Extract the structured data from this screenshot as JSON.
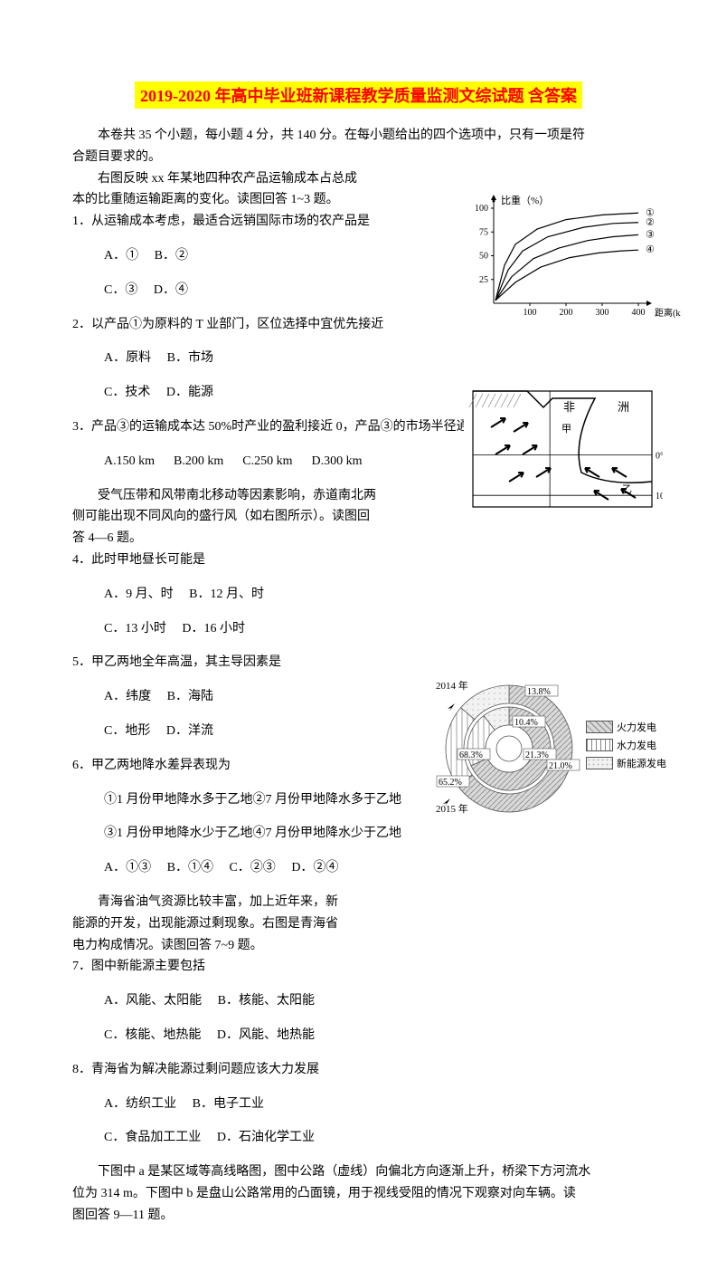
{
  "title": "2019-2020 年高中毕业班新课程教学质量监测文综试题 含答案",
  "intro": {
    "p1": "本卷共 35 个小题，每小题 4 分，共 140 分。在每小题给出的四个选项中，只有一项是符",
    "p2": "合题目要求的。",
    "p3": "右图反映 xx 年某地四种农产品运输成本占总成",
    "p4": "本的比重随运输距离的变化。读图回答 1~3 题。"
  },
  "q1": {
    "stem": "1．从运输成本考虑，最适合远销国际市场的农产品是",
    "a": "A．①",
    "b": "B．②",
    "c": "C．③",
    "d": "D．④"
  },
  "q2": {
    "stem": "2．以产品①为原料的 T 业部门，区位选择中宜优先接近",
    "a": "A．原料",
    "b": "B．市场",
    "c": "C．技术",
    "d": "D．能源"
  },
  "q3": {
    "stem": "3．产品③的运输成本达 50%时产业的盈利接近 0，产品③的市场半径通常不超过",
    "a": "A.150 km",
    "b": "B.200 km",
    "c": "C.250 km",
    "d": "D.300 km"
  },
  "context2": {
    "l1": "受气压带和风带南北移动等因素影响，赤道南北两",
    "l2": "侧可能出现不同风向的盛行风（如右图所示）。读图回",
    "l3": "答 4—6 题。"
  },
  "q4": {
    "stem": "4．此时甲地昼长可能是",
    "a": "A．9 月、时",
    "b": "B．12 月、时",
    "c": "C．13 小时",
    "d": "D．16 小时"
  },
  "q5": {
    "stem": "5．甲乙两地全年高温，其主导因素是",
    "a": "A．纬度",
    "b": "B．海陆",
    "c": "C．地形",
    "d": "D．洋流"
  },
  "q6": {
    "stem": "6．甲乙两地降水差异表现为",
    "l1": "①1 月份甲地降水多于乙地②7 月份甲地降水多于乙地",
    "l2": "③1 月份甲地降水少于乙地④7 月份甲地降水少于乙地",
    "a": "A．①③",
    "b": "B．①④",
    "c": "C．②③",
    "d": "D．②④"
  },
  "context3": {
    "l1": "青海省油气资源比较丰富，加上近年来，新",
    "l2": "能源的开发，出现能源过剩现象。右图是青海省",
    "l3": "电力构成情况。读图回答 7~9 题。"
  },
  "q7": {
    "stem": "7．图中新能源主要包括",
    "a": "A．风能、太阳能",
    "b": "B．核能、太阳能",
    "c": "C．核能、地热能",
    "d": "D．风能、地热能"
  },
  "q8": {
    "stem": "8．青海省为解决能源过剩问题应该大力发展",
    "a": "A．纺织工业",
    "b": "B．电子工业",
    "c": "C．食品加工工业",
    "d": "D．石油化学工业"
  },
  "context4": {
    "l1": "下图中 a 是某区域等高线略图，图中公路（虚线）向偏北方向逐渐上升，桥梁下方河流水",
    "l2": "位为 314 m。下图中 b 是盘山公路常用的凸面镜，用于视线受阻的情况下观察对向车辆。读",
    "l3": "图回答 9—11 题。"
  },
  "chart1": {
    "type": "line",
    "title_y": "比重（%）",
    "title_x": "距离(km)",
    "series_labels": [
      "①",
      "②",
      "③",
      "④"
    ],
    "ylim": [
      0,
      100
    ],
    "ytick": [
      25,
      50,
      75,
      100
    ],
    "xlim": [
      0,
      400
    ],
    "xtick": [
      100,
      200,
      300,
      400
    ],
    "colors": {
      "axes": "#000000",
      "lines": "#000000",
      "bg": "#ffffff"
    },
    "line_width": 1.2,
    "series": {
      "s1": [
        [
          5,
          3
        ],
        [
          30,
          40
        ],
        [
          60,
          62
        ],
        [
          120,
          78
        ],
        [
          200,
          88
        ],
        [
          300,
          93
        ],
        [
          400,
          95
        ]
      ],
      "s2": [
        [
          5,
          3
        ],
        [
          40,
          35
        ],
        [
          80,
          55
        ],
        [
          150,
          70
        ],
        [
          250,
          80
        ],
        [
          330,
          84
        ],
        [
          400,
          85
        ]
      ],
      "s3": [
        [
          5,
          3
        ],
        [
          50,
          28
        ],
        [
          110,
          47
        ],
        [
          180,
          58
        ],
        [
          260,
          66
        ],
        [
          330,
          70
        ],
        [
          400,
          72
        ]
      ],
      "s4": [
        [
          5,
          3
        ],
        [
          60,
          22
        ],
        [
          130,
          38
        ],
        [
          210,
          48
        ],
        [
          290,
          53
        ],
        [
          350,
          55
        ],
        [
          400,
          56
        ]
      ]
    }
  },
  "chart2": {
    "type": "map-sketch",
    "labels": {
      "continent1": "非",
      "continent2": "洲",
      "jia": "甲",
      "yi": "乙"
    },
    "lat_labels": [
      "0°",
      "10°"
    ],
    "colors": {
      "border": "#000000",
      "land_hatch": "#777777",
      "bg": "#ffffff",
      "arrow": "#000000"
    },
    "arrows_nw": [
      [
        20,
        40
      ],
      [
        45,
        45
      ],
      [
        25,
        70
      ],
      [
        55,
        70
      ],
      [
        40,
        100
      ],
      [
        70,
        95
      ]
    ],
    "arrows_se": [
      [
        140,
        95
      ],
      [
        170,
        95
      ],
      [
        150,
        120
      ],
      [
        180,
        118
      ]
    ],
    "arrow_len": 20
  },
  "chart3": {
    "type": "nested-donut",
    "years": {
      "outer": "2015 年",
      "inner": "2014 年"
    },
    "inner_values": {
      "fire": 68.3,
      "hydro": 21.3,
      "new": 10.4
    },
    "outer_values": {
      "fire": 65.2,
      "hydro": 21.0,
      "new": 13.8
    },
    "label_inner_fire": "68.3%",
    "label_inner_hydro": "21.3%",
    "label_inner_new": "10.4%",
    "label_outer_fire": "65.2%",
    "label_outer_hydro": "21.0%",
    "label_outer_new": "13.8%",
    "colors": {
      "fire_fill": "#d9d9d9",
      "hydro_fill": "#ffffff",
      "new_fill": "#f2f2f2",
      "fire_hatch": "#888888",
      "hydro_hatch": "#888888",
      "new_hatch": "#bbbbbb",
      "border": "#555555",
      "bg": "#ffffff",
      "text": "#000000"
    },
    "legend": {
      "fire": "火力发电",
      "hydro": "水力发电",
      "new": "新能源发电"
    },
    "radii": {
      "outer_o": 70,
      "outer_i": 50,
      "inner_o": 46,
      "inner_i": 26,
      "hole": 14
    },
    "fontsize": 10
  }
}
